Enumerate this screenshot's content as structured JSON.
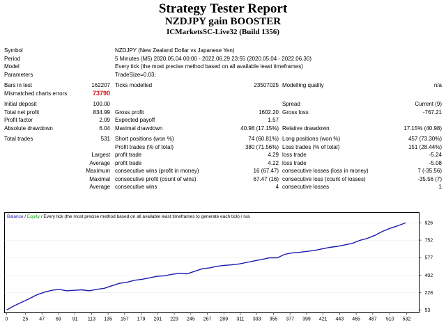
{
  "header": {
    "title": "Strategy Tester Report",
    "subtitle": "NZDJPY gain BOOSTER",
    "server": "ICMarketsSC-Live32 (Build 1356)"
  },
  "info": {
    "symbol": {
      "label": "Symbol",
      "value": "NZDJPY (New Zealand Dollar vs Japanese Yen)"
    },
    "period": {
      "label": "Period",
      "value": "5 Minutes (M5) 2020.05.04 00:00 - 2022.06.29 23:55 (2020.05.04 - 2022.06.30)"
    },
    "model": {
      "label": "Model",
      "value": "Every tick (the most precise method based on all available least timeframes)"
    },
    "parameters": {
      "label": "Parameters",
      "value": "TradeSize=0.03;"
    }
  },
  "stats": {
    "bars_in_test": {
      "label": "Bars in test",
      "value": "162207"
    },
    "ticks_modelled": {
      "label": "Ticks modelled",
      "value": "23507025"
    },
    "modelling_quality": {
      "label": "Modelling quality",
      "value": "n/a"
    },
    "mismatched": {
      "label": "Mismatched charts errors",
      "value": "73790"
    },
    "initial_deposit": {
      "label": "Initial deposit",
      "value": "100.00"
    },
    "spread": {
      "label": "Spread",
      "value": "Current (9)"
    },
    "total_net_profit": {
      "label": "Total net profit",
      "value": "834.99"
    },
    "gross_profit": {
      "label": "Gross profit",
      "value": "1602.20"
    },
    "gross_loss": {
      "label": "Gross loss",
      "value": "-767.21"
    },
    "profit_factor": {
      "label": "Profit factor",
      "value": "2.09"
    },
    "expected_payoff": {
      "label": "Expected payoff",
      "value": "1.57"
    },
    "absolute_drawdown": {
      "label": "Absolute drawdown",
      "value": "6.04"
    },
    "maximal_drawdown": {
      "label": "Maximal drawdown",
      "value": "40.98 (17.15%)"
    },
    "relative_drawdown": {
      "label": "Relative drawdown",
      "value": "17.15% (40.98)"
    },
    "total_trades": {
      "label": "Total trades",
      "value": "531"
    },
    "short_positions": {
      "label": "Short positions (won %)",
      "value": "74 (60.81%)"
    },
    "long_positions": {
      "label": "Long positions (won %)",
      "value": "457 (73.30%)"
    },
    "profit_trades": {
      "label": "Profit trades (% of total)",
      "value": "380 (71.56%)"
    },
    "loss_trades": {
      "label": "Loss trades (% of total)",
      "value": "151 (28.44%)"
    },
    "largest": {
      "label": "Largest",
      "profit_label": "profit trade",
      "profit": "4.29",
      "loss_label": "loss trade",
      "loss": "-5.24"
    },
    "average": {
      "label": "Average",
      "profit_label": "profit trade",
      "profit": "4.22",
      "loss_label": "loss trade",
      "loss": "-5.08"
    },
    "maximum": {
      "label": "Maximum",
      "wins_label": "consecutive wins (profit in money)",
      "wins": "16 (67.47)",
      "losses_label": "consecutive losses (loss in money)",
      "losses": "7 (-35.56)"
    },
    "maximal": {
      "label": "Maximal",
      "profit_label": "consecutive profit (count of wins)",
      "profit": "67.47 (16)",
      "loss_label": "consecutive loss (count of losses)",
      "loss": "-35.56 (7)"
    },
    "average_consec": {
      "label": "Average",
      "wins_label": "consecutive wins",
      "wins": "4",
      "losses_label": "consecutive losses",
      "losses": "1"
    }
  },
  "chart_data": {
    "type": "line",
    "legend_balance": "Balance",
    "legend_sep": " / ",
    "legend_equity": "Equity",
    "legend_rest": " / Every tick (the most precise method based on all available least timeframes to generate each tick) / n/a",
    "colors": {
      "balance": "#1a1ab0",
      "equity": "#10a010",
      "axis": "#000000",
      "grid": "#e8e8e8"
    },
    "xlim": [
      0,
      546
    ],
    "ylim": [
      53,
      1000
    ],
    "x_ticks": [
      0,
      25,
      47,
      69,
      91,
      113,
      135,
      157,
      179,
      201,
      223,
      245,
      267,
      289,
      311,
      333,
      355,
      377,
      399,
      421,
      443,
      465,
      487,
      510,
      532
    ],
    "y_ticks": [
      53,
      228,
      402,
      577,
      752,
      926
    ],
    "series": [
      {
        "name": "Balance",
        "x": [
          0,
          10,
          20,
          30,
          40,
          50,
          60,
          70,
          80,
          90,
          100,
          110,
          120,
          130,
          140,
          150,
          160,
          170,
          180,
          190,
          200,
          210,
          220,
          230,
          240,
          250,
          260,
          270,
          280,
          290,
          300,
          310,
          320,
          330,
          340,
          350,
          360,
          370,
          380,
          390,
          400,
          410,
          420,
          430,
          440,
          450,
          460,
          470,
          480,
          490,
          500,
          510,
          520,
          531
        ],
        "y": [
          53,
          95,
          130,
          165,
          205,
          230,
          250,
          260,
          245,
          250,
          255,
          245,
          260,
          270,
          295,
          320,
          330,
          350,
          360,
          375,
          390,
          395,
          410,
          420,
          415,
          440,
          465,
          475,
          490,
          500,
          505,
          515,
          530,
          545,
          560,
          575,
          575,
          610,
          625,
          630,
          640,
          650,
          665,
          680,
          690,
          705,
          720,
          750,
          770,
          800,
          840,
          870,
          895,
          926
        ]
      }
    ]
  }
}
